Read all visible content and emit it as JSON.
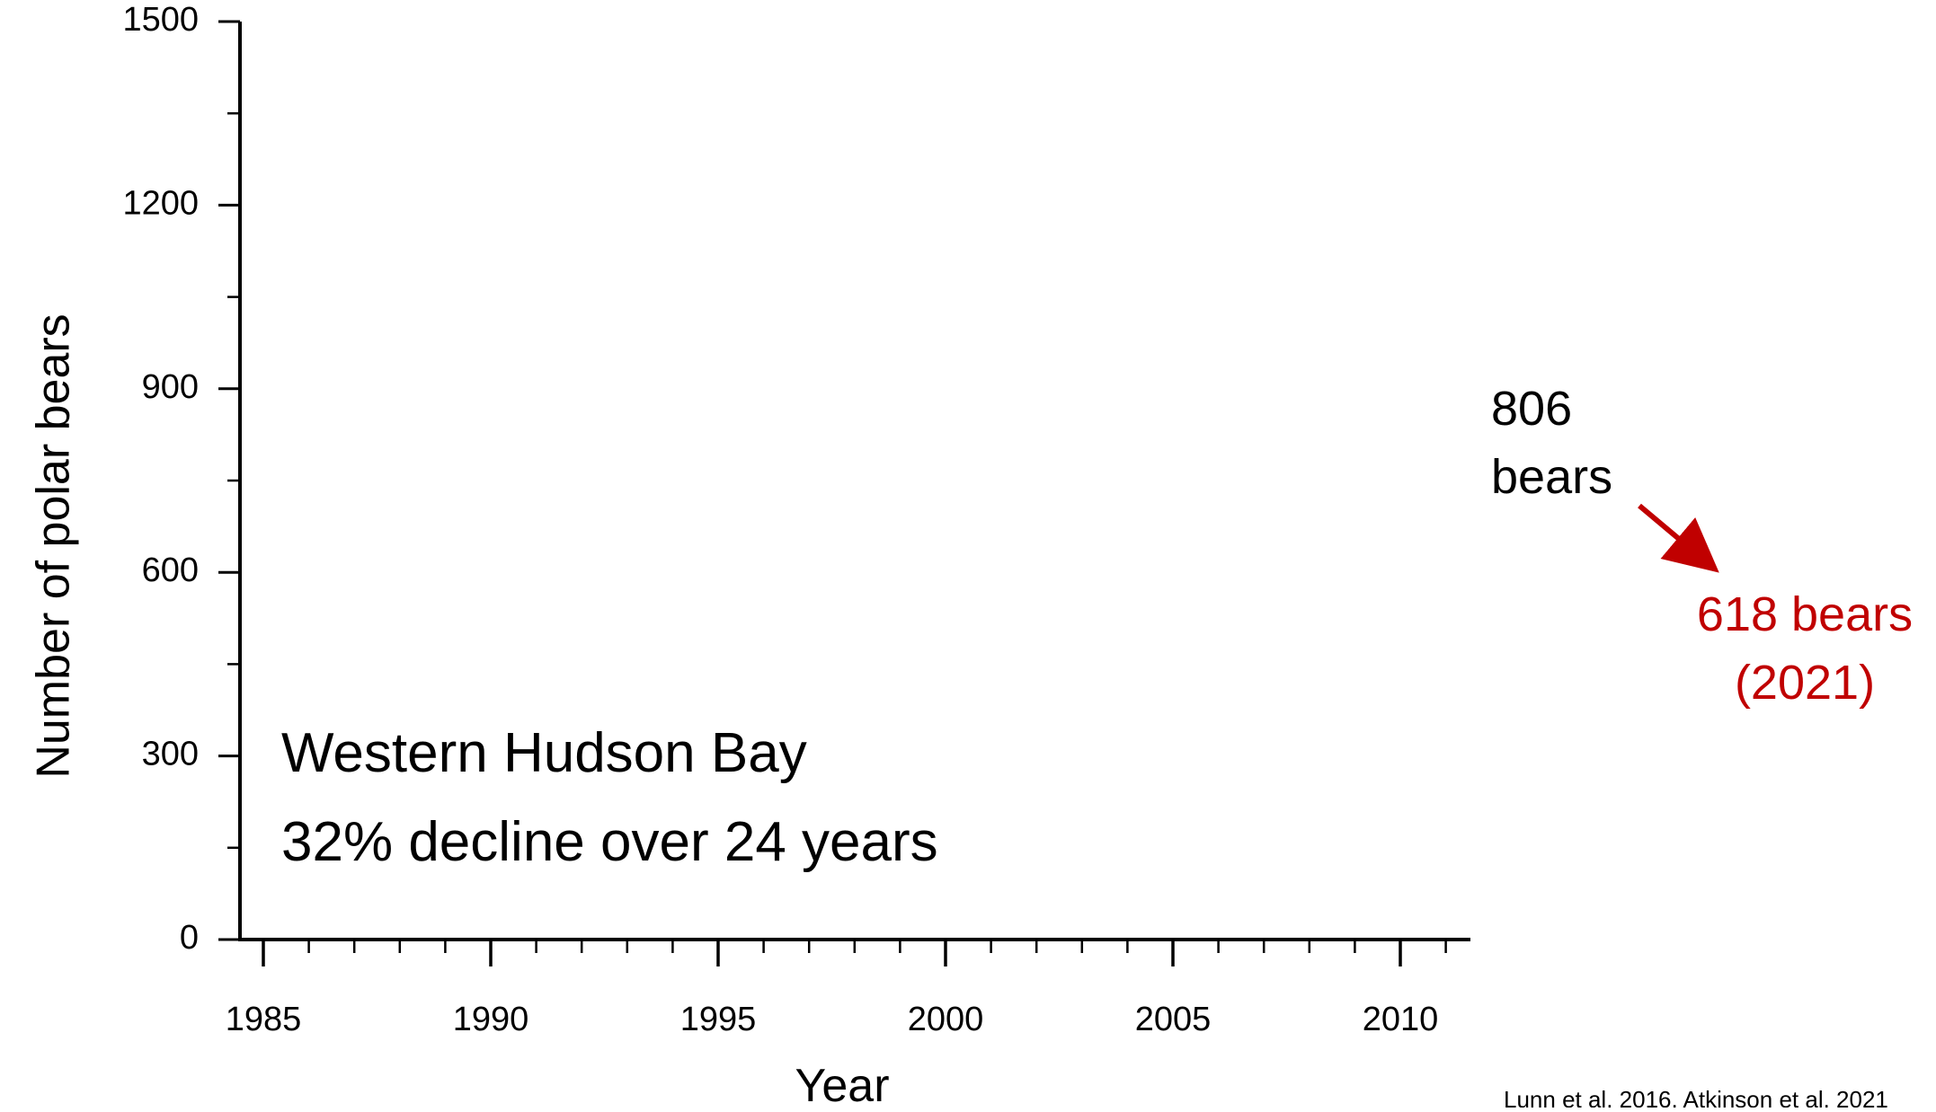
{
  "chart_data": {
    "type": "line",
    "title": "",
    "xlabel": "Year",
    "ylabel": "Number of polar bears",
    "xlim": [
      1985,
      2011
    ],
    "ylim": [
      0,
      1500
    ],
    "x_major_ticks": [
      1985,
      1990,
      1995,
      2000,
      2005,
      2010
    ],
    "x_minor_ticks": [
      1986,
      1987,
      1988,
      1989,
      1991,
      1992,
      1993,
      1994,
      1996,
      1997,
      1998,
      1999,
      2001,
      2002,
      2003,
      2004,
      2006,
      2007,
      2008,
      2009,
      2011
    ],
    "y_major_ticks": [
      0,
      300,
      600,
      900,
      1200,
      1500
    ],
    "y_minor_ticks": [
      150,
      450,
      750,
      1050,
      1350
    ],
    "x_tick_labels": [
      "1985",
      "1990",
      "1995",
      "2000",
      "2005",
      "2010"
    ],
    "y_tick_labels": [
      "0",
      "300",
      "600",
      "900",
      "1200",
      "1500"
    ],
    "grid": false,
    "series": [],
    "annotations": {
      "region": "Western Hudson Bay",
      "decline": "32% decline over 24 years",
      "count_start_number": "806",
      "count_start_unit": "bears",
      "count_end": "618 bears",
      "count_end_year": "(2021)"
    },
    "source": "Lunn et al. 2016, Atkinson et al. 2021"
  },
  "colors": {
    "axis": "#000000",
    "text": "#000000",
    "highlight": "#c00000"
  }
}
